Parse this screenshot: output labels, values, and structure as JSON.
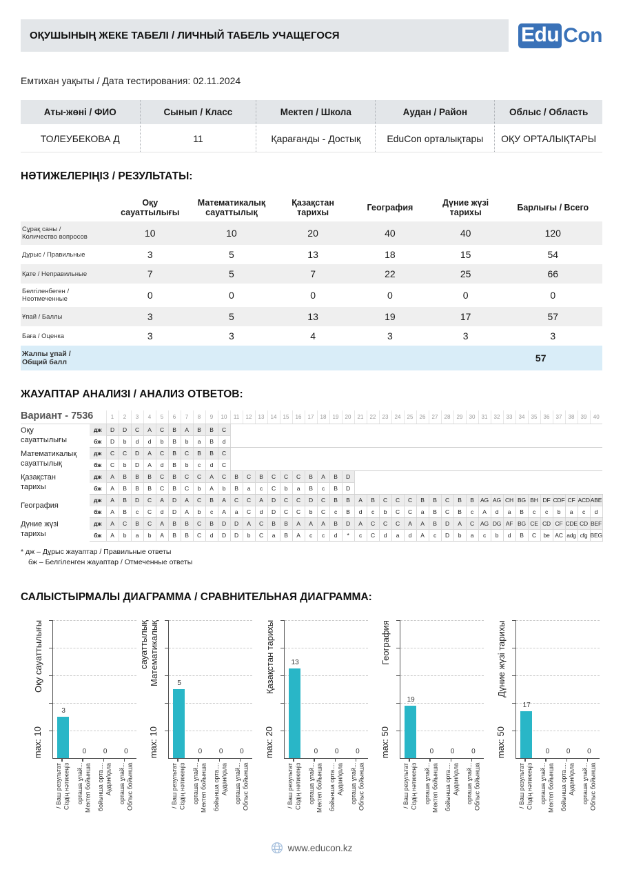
{
  "header": {
    "title": "ОҚУШЫНЫҢ ЖЕКЕ ТАБЕЛІ / ЛИЧНЫЙ ТАБЕЛЬ УЧАЩЕГОСЯ",
    "logo_edu": "Edu",
    "logo_con": "Con",
    "logo_color": "#3a72b8"
  },
  "exam_date": "Емтихан уақыты / Дата тестирования: 02.11.2024",
  "student_table": {
    "headers": [
      "Аты-жөні / ФИО",
      "Сынып / Класс",
      "Мектеп / Школа",
      "Аудан / Район",
      "Облыс / Область"
    ],
    "values": [
      "ТОЛЕУБЕКОВА Д",
      "11",
      "Қарағанды - Достық",
      "EduCon орталықтары",
      "ОҚУ ОРТАЛЫҚТАРЫ"
    ]
  },
  "results": {
    "title": "НӘТИЖЕЛЕРІҢІЗ / РЕЗУЛЬТАТЫ:",
    "columns": [
      "Оқу\nсауаттылығы",
      "Математикалық\nсауаттылық",
      "Қазақстан\nтарихы",
      "География",
      "Дүние жүзі\nтарихы",
      "Барлығы / Всего"
    ],
    "rows": [
      {
        "label": "Сұрақ саны /\nКоличество вопросов",
        "values": [
          "10",
          "10",
          "20",
          "40",
          "40",
          "120"
        ]
      },
      {
        "label": "Дұрыс / Правильные",
        "values": [
          "3",
          "5",
          "13",
          "18",
          "15",
          "54"
        ]
      },
      {
        "label": "Қате / Неправильные",
        "values": [
          "7",
          "5",
          "7",
          "22",
          "25",
          "66"
        ]
      },
      {
        "label": "Белгіленбеген /\nНеотмеченные",
        "values": [
          "0",
          "0",
          "0",
          "0",
          "0",
          "0"
        ]
      },
      {
        "label": "Ұпай / Баллы",
        "values": [
          "3",
          "5",
          "13",
          "19",
          "17",
          "57"
        ]
      },
      {
        "label": "Баға / Оценка",
        "values": [
          "3",
          "3",
          "4",
          "3",
          "3",
          "3"
        ]
      }
    ],
    "total_label": "Жалпы ұпай  /\nОбщий балл",
    "total_value": "57"
  },
  "answers": {
    "title": "ЖАУАПТАР АНАЛИЗІ / АНАЛИЗ ОТВЕТОВ:",
    "variant": "Вариант - 7536",
    "row_keys": [
      "дж",
      "бж"
    ],
    "question_numbers": [
      1,
      2,
      3,
      4,
      5,
      6,
      7,
      8,
      9,
      10,
      11,
      12,
      13,
      14,
      15,
      16,
      17,
      18,
      19,
      20,
      21,
      22,
      23,
      24,
      25,
      26,
      27,
      28,
      29,
      30,
      31,
      32,
      33,
      34,
      35,
      36,
      37,
      38,
      39,
      40
    ],
    "subjects": [
      {
        "name_lines": "Оқу\nсауаттылығы",
        "dzh": [
          "D",
          "D",
          "C",
          "A",
          "C",
          "B",
          "A",
          "B",
          "B",
          "C"
        ],
        "bzh": [
          "D",
          "b",
          "d",
          "d",
          "b",
          "B",
          "b",
          "a",
          "B",
          "d"
        ]
      },
      {
        "name_lines": "Математикалық\nсауаттылық",
        "dzh": [
          "C",
          "C",
          "D",
          "A",
          "C",
          "B",
          "C",
          "B",
          "B",
          "C"
        ],
        "bzh": [
          "C",
          "b",
          "D",
          "A",
          "d",
          "B",
          "b",
          "c",
          "d",
          "C"
        ]
      },
      {
        "name_lines": "Қазақстан\nтарихы",
        "dzh": [
          "A",
          "B",
          "B",
          "B",
          "C",
          "B",
          "C",
          "C",
          "A",
          "C",
          "B",
          "C",
          "B",
          "C",
          "C",
          "C",
          "B",
          "A",
          "B",
          "D"
        ],
        "bzh": [
          "A",
          "B",
          "B",
          "B",
          "C",
          "B",
          "C",
          "b",
          "A",
          "b",
          "B",
          "a",
          "c",
          "C",
          "b",
          "a",
          "B",
          "c",
          "B",
          "D"
        ]
      },
      {
        "name_lines": "География",
        "dzh": [
          "A",
          "B",
          "D",
          "C",
          "A",
          "D",
          "A",
          "C",
          "B",
          "A",
          "C",
          "C",
          "A",
          "D",
          "C",
          "C",
          "D",
          "C",
          "B",
          "B",
          "A",
          "B",
          "C",
          "C",
          "C",
          "B",
          "B",
          "C",
          "B",
          "B",
          "AG",
          "AG",
          "CH",
          "BG",
          "BH",
          "DF",
          "CDF",
          "CF",
          "ACD",
          "ABE"
        ],
        "bzh": [
          "A",
          "B",
          "c",
          "C",
          "d",
          "D",
          "A",
          "b",
          "c",
          "A",
          "a",
          "C",
          "d",
          "D",
          "C",
          "C",
          "b",
          "C",
          "c",
          "B",
          "d",
          "c",
          "b",
          "C",
          "C",
          "a",
          "B",
          "C",
          "B",
          "c",
          "A",
          "d",
          "a",
          "B",
          "c",
          "c",
          "b",
          "a",
          "c",
          "d"
        ]
      },
      {
        "name_lines": "Дүние жүзі\nтарихы",
        "dzh": [
          "A",
          "C",
          "B",
          "C",
          "A",
          "B",
          "B",
          "C",
          "B",
          "D",
          "D",
          "A",
          "C",
          "B",
          "B",
          "A",
          "A",
          "A",
          "B",
          "D",
          "A",
          "C",
          "C",
          "C",
          "A",
          "A",
          "B",
          "D",
          "A",
          "C",
          "AG",
          "DG",
          "AF",
          "BG",
          "CE",
          "CD",
          "CF",
          "CDE",
          "CD",
          "BEF"
        ],
        "bzh": [
          "A",
          "b",
          "a",
          "b",
          "A",
          "B",
          "B",
          "C",
          "d",
          "D",
          "D",
          "b",
          "C",
          "a",
          "B",
          "A",
          "c",
          "c",
          "d",
          "*",
          "c",
          "C",
          "d",
          "a",
          "d",
          "A",
          "c",
          "D",
          "b",
          "a",
          "c",
          "b",
          "d",
          "B",
          "C",
          "be",
          "AC",
          "adg",
          "cfg",
          "BEG"
        ]
      }
    ],
    "footnote1": "* дж – Дұрыс жауаптар / Правильные ответы",
    "footnote2": "бж – Белгіленген жауаптар / Отмеченные ответы"
  },
  "charts_section": {
    "title": "САЛЫСТЫРМАЛЫ ДИАГРАММА / СРАВНИТЕЛЬНАЯ ДИАГРАММА:",
    "bar_color": "#29b6c7",
    "category_lines": [
      [
        "Сіздің нәтижеңіз",
        "/ Ваш результат"
      ],
      [
        "Мектеп бойынша",
        "орташа ұпай..."
      ],
      [
        "Аудан/қала",
        "бойынша орта...."
      ],
      [
        "Облыс бойынша",
        "орташа ұпай..."
      ]
    ]
  },
  "chart_data": [
    {
      "type": "bar",
      "title": "Оқу сауаттылығы",
      "title_lines": [
        "Оқу сауаттылығы"
      ],
      "max_label": "max: 10",
      "ylim": [
        0,
        10
      ],
      "categories": [
        "Сіздің нәтижеңіз / Ваш результат",
        "Мектеп бойынша орташа ұпай...",
        "Аудан/қала бойынша орта....",
        "Облыс бойынша орташа ұпай..."
      ],
      "values": [
        3,
        0,
        0,
        0
      ]
    },
    {
      "type": "bar",
      "title": "Математикалық сауаттылық",
      "title_lines": [
        "Математикалық",
        "сауаттылық"
      ],
      "max_label": "max: 10",
      "ylim": [
        0,
        10
      ],
      "categories": [
        "Сіздің нәтижеңіз / Ваш результат",
        "Мектеп бойынша орташа ұпай...",
        "Аудан/қала бойынша орта....",
        "Облыс бойынша орташа ұпай..."
      ],
      "values": [
        5,
        0,
        0,
        0
      ]
    },
    {
      "type": "bar",
      "title": "Қазақстан тарихы",
      "title_lines": [
        "Қазақстан тарихы"
      ],
      "max_label": "max: 20",
      "ylim": [
        0,
        20
      ],
      "categories": [
        "Сіздің нәтижеңіз / Ваш результат",
        "Мектеп бойынша орташа ұпай...",
        "Аудан/қала бойынша орта....",
        "Облыс бойынша орташа ұпай..."
      ],
      "values": [
        13,
        0,
        0,
        0
      ]
    },
    {
      "type": "bar",
      "title": "География",
      "title_lines": [
        "География"
      ],
      "max_label": "max: 50",
      "ylim": [
        0,
        50
      ],
      "categories": [
        "Сіздің нәтижеңіз / Ваш результат",
        "Мектеп бойынша орташа ұпай...",
        "Аудан/қала бойынша орта....",
        "Облыс бойынша орташа ұпай..."
      ],
      "values": [
        19,
        0,
        0,
        0
      ]
    },
    {
      "type": "bar",
      "title": "Дүние жүзі тарихы",
      "title_lines": [
        "Дүние жүзі тарихы"
      ],
      "max_label": "max: 50",
      "ylim": [
        0,
        50
      ],
      "categories": [
        "Сіздің нәтижеңіз / Ваш результат",
        "Мектеп бойынша орташа ұпай...",
        "Аудан/қала бойынша орта....",
        "Облыс бойынша орташа ұпай..."
      ],
      "values": [
        17,
        0,
        0,
        0
      ]
    }
  ],
  "footer": {
    "website": "www.educon.kz"
  }
}
